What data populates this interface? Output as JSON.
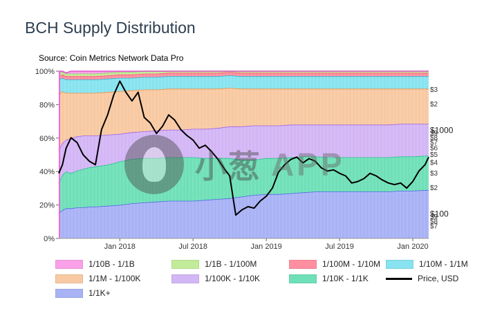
{
  "title": "BCH Supply Distribution",
  "source": "Source: Coin Metrics Network Data Pro",
  "watermark": {
    "cn": "小葱",
    "app": "APP"
  },
  "chart_data": {
    "type": "area",
    "stacked": true,
    "x_ticks": [
      "Jan 2018",
      "Jul 2018",
      "Jan 2019",
      "Jul 2019",
      "Jan 2020"
    ],
    "x_tick_months": [
      5,
      11,
      17,
      23,
      29
    ],
    "x_range_months": [
      0,
      30.3
    ],
    "y_ticks": [
      "0%",
      "20%",
      "40%",
      "60%",
      "80%",
      "100%"
    ],
    "ylim": [
      0,
      100
    ],
    "right_axis_labels": {
      "100_group": [
        "$100",
        "$9",
        "$8",
        "$7"
      ],
      "1000_group": [
        "$1000",
        "$9",
        "$8",
        "$7",
        "$6",
        "$5",
        "$4",
        "$3",
        "$2"
      ],
      "top_group": [
        "$3",
        "$2"
      ]
    },
    "right_axis_values": {
      "100_group": [
        100,
        90,
        80,
        70
      ],
      "1000_group": [
        1000,
        900,
        800,
        700,
        600,
        500,
        400,
        300,
        200
      ],
      "top_group": [
        3000,
        2000
      ]
    },
    "price_ylim": [
      50,
      5000
    ],
    "x": [
      0,
      0.3,
      0.6,
      1,
      1.5,
      2,
      2.5,
      3,
      4,
      5,
      6,
      7,
      8,
      9,
      10,
      11,
      12,
      13,
      14,
      15,
      16,
      17,
      18,
      19,
      20,
      21,
      22,
      23,
      24,
      25,
      26,
      27,
      28,
      29,
      30.3
    ],
    "series": [
      {
        "name": "1/1K+",
        "color": "#a8b2f5",
        "values": [
          15,
          17,
          18,
          18,
          18.5,
          18.5,
          19,
          19,
          19.5,
          20,
          21,
          21.5,
          22,
          22.5,
          22.5,
          22.5,
          23,
          23.5,
          24,
          25,
          26,
          26.5,
          26.5,
          27,
          27.5,
          28,
          28,
          28,
          28,
          28,
          28,
          28,
          28.5,
          28.5,
          29
        ]
      },
      {
        "name": "1/10K - 1/1K",
        "color": "#6fe0b8",
        "values": [
          18,
          21,
          22,
          21,
          22,
          23,
          23.5,
          24,
          24.5,
          26,
          26.5,
          26.5,
          26,
          26,
          26,
          26,
          25,
          24.5,
          24,
          22,
          21,
          21.5,
          21.5,
          21.5,
          21.5,
          21,
          20.5,
          20.5,
          20.5,
          20.5,
          20.5,
          20.5,
          20.5,
          20.5,
          20.5
        ]
      },
      {
        "name": "1/100K - 1/10K",
        "color": "#d3b6f5",
        "values": [
          20,
          19,
          19,
          21,
          20.5,
          20,
          19,
          18.5,
          18,
          16.5,
          16,
          16,
          16.5,
          16.5,
          16.5,
          17,
          17.5,
          18,
          19,
          20,
          20.5,
          19.5,
          19.5,
          19.5,
          19,
          19,
          19.5,
          19.5,
          19.5,
          19.5,
          19.5,
          19.5,
          19.5,
          19.5,
          19
        ]
      },
      {
        "name": "1/1M - 1/100K",
        "color": "#f8c9a2",
        "values": [
          33,
          31,
          28,
          27,
          26,
          25.5,
          25.5,
          25.5,
          25.5,
          25.5,
          25,
          25,
          24.5,
          24.5,
          24.5,
          24,
          24,
          23.5,
          23,
          22.5,
          22,
          22,
          22,
          21.5,
          21.5,
          21.5,
          21.5,
          21.5,
          21.5,
          21.5,
          21.5,
          21.5,
          21,
          21,
          21
        ]
      },
      {
        "name": "1/10M - 1/1M",
        "color": "#87e3ef",
        "values": [
          9,
          8,
          8,
          8,
          8,
          8,
          8,
          8,
          8,
          8,
          7.5,
          7.5,
          7.5,
          7.5,
          7.5,
          7.5,
          7.5,
          7.5,
          7.5,
          7.5,
          7.5,
          7.5,
          7.5,
          7.5,
          7.5,
          7.5,
          7.5,
          7.5,
          7.5,
          7.5,
          7.5,
          7.5,
          7.5,
          7.5,
          7.5
        ]
      },
      {
        "name": "1/100M - 1/10M",
        "color": "#ff8fa0",
        "values": [
          2,
          2,
          2,
          2,
          2,
          2,
          2,
          2,
          2,
          2,
          2,
          2,
          2,
          2,
          2,
          2,
          2,
          2,
          2,
          2,
          2,
          2,
          2,
          2,
          2,
          2,
          2,
          2,
          2,
          2,
          2,
          2,
          2,
          2,
          2
        ]
      },
      {
        "name": "1/1B - 1/100M",
        "color": "#c3ec9a",
        "values": [
          1.5,
          1.5,
          1.5,
          1.5,
          1.5,
          1.5,
          1.5,
          1.5,
          1.5,
          1.5,
          1.5,
          1.5,
          1.5,
          1.5,
          1.5,
          1.5,
          1.5,
          1.5,
          1.5,
          1.5,
          1.5,
          1.5,
          1.5,
          1.5,
          1.5,
          1.5,
          1.5,
          1.5,
          1.5,
          1.5,
          1.5,
          1.5,
          1.5,
          1.5,
          1.5
        ]
      },
      {
        "name": "1/10B - 1/1B",
        "color": "#f9a0e8",
        "values": [
          1.5,
          0.5,
          0.5,
          1.5,
          1.5,
          1.5,
          1.5,
          1.5,
          1.5,
          1.5,
          1.5,
          1.5,
          1.5,
          1.5,
          1.5,
          1.5,
          1.5,
          1.5,
          1.5,
          1.5,
          1.5,
          1.5,
          1.5,
          1.5,
          1.5,
          1.5,
          1.5,
          1.5,
          1.5,
          1.5,
          1.5,
          1.5,
          1.5,
          1.5,
          1.5
        ]
      }
    ],
    "price": {
      "name": "Price, USD",
      "color": "#000000",
      "x": [
        0,
        0.3,
        0.6,
        1,
        1.5,
        2,
        2.5,
        3,
        3.5,
        4,
        4.5,
        5,
        5.5,
        6,
        6.5,
        7,
        7.5,
        8,
        8.5,
        9,
        9.5,
        10,
        10.5,
        11,
        11.5,
        12,
        12.5,
        13,
        13.5,
        14,
        14.5,
        15,
        15.5,
        16,
        16.5,
        17,
        17.5,
        18,
        18.5,
        19,
        19.5,
        20,
        20.5,
        21,
        21.5,
        22,
        22.5,
        23,
        23.5,
        24,
        24.5,
        25,
        25.5,
        26,
        26.5,
        27,
        27.5,
        28,
        28.5,
        29,
        29.5,
        30,
        30.3
      ],
      "values": [
        300,
        380,
        600,
        800,
        700,
        500,
        420,
        380,
        1000,
        1500,
        2600,
        3800,
        2800,
        2200,
        2800,
        1400,
        1200,
        900,
        1100,
        1500,
        1300,
        1000,
        850,
        750,
        600,
        650,
        550,
        450,
        350,
        280,
        95,
        110,
        120,
        115,
        140,
        160,
        200,
        310,
        380,
        440,
        470,
        400,
        450,
        420,
        350,
        320,
        330,
        300,
        280,
        230,
        240,
        260,
        300,
        280,
        250,
        230,
        220,
        230,
        200,
        240,
        320,
        380,
        470
      ]
    }
  },
  "legend": [
    {
      "label": "1/10B - 1/1B",
      "color": "#f9a0e8",
      "kind": "area"
    },
    {
      "label": "1/1B - 1/100M",
      "color": "#c3ec9a",
      "kind": "area"
    },
    {
      "label": "1/100M - 1/10M",
      "color": "#ff8fa0",
      "kind": "area"
    },
    {
      "label": "1/10M - 1/1M",
      "color": "#87e3ef",
      "kind": "area"
    },
    {
      "label": "1/1M - 1/100K",
      "color": "#f8c9a2",
      "kind": "area"
    },
    {
      "label": "1/100K - 1/10K",
      "color": "#d3b6f5",
      "kind": "area"
    },
    {
      "label": "1/10K - 1/1K",
      "color": "#6fe0b8",
      "kind": "area"
    },
    {
      "label": "Price, USD",
      "color": "#000000",
      "kind": "line"
    },
    {
      "label": "1/1K+",
      "color": "#a8b2f5",
      "kind": "area"
    }
  ]
}
